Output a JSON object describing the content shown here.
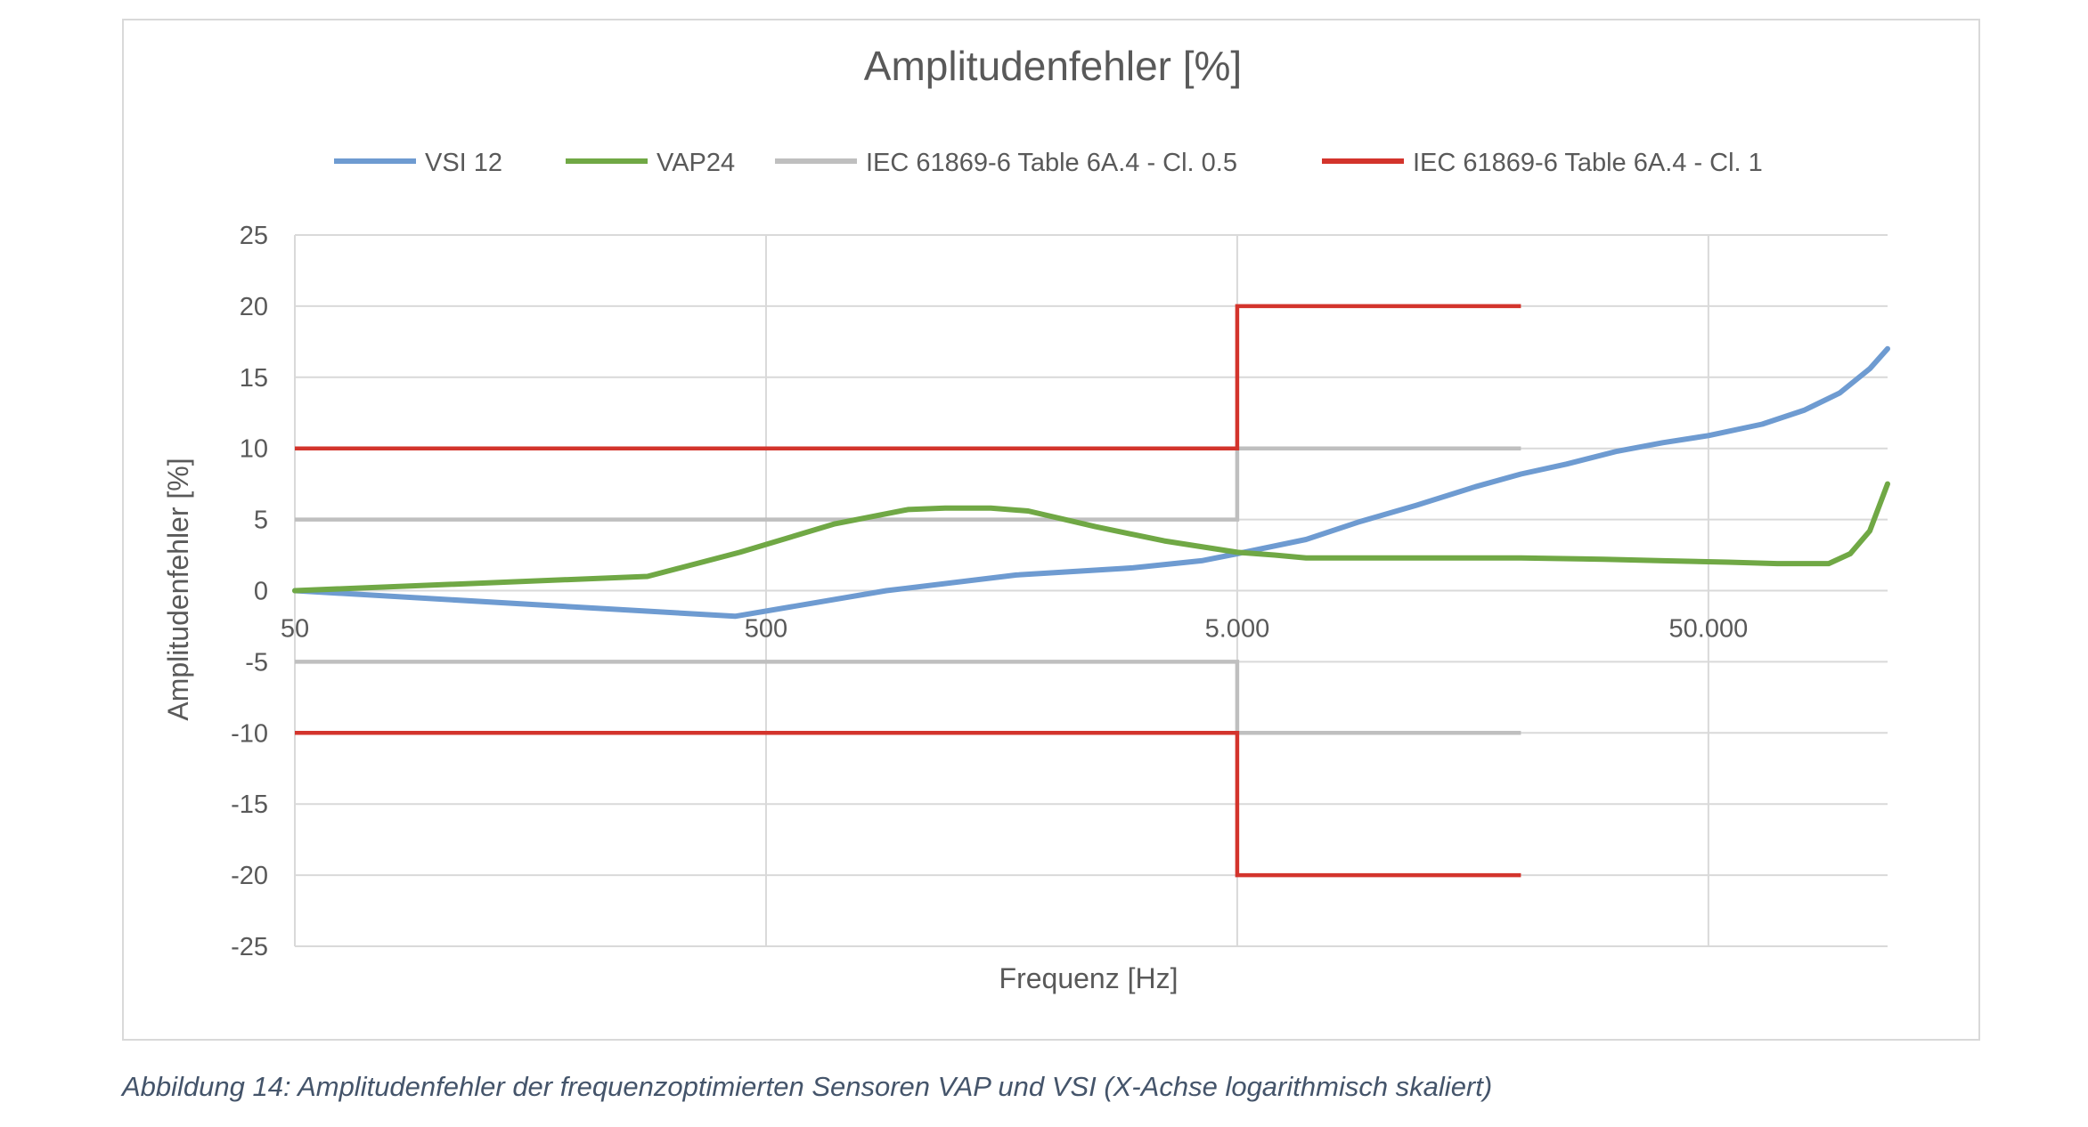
{
  "chart_data": {
    "type": "line",
    "title": "Amplitudenfehler [%]",
    "xlabel": "Frequenz [Hz]",
    "ylabel": "Amplitudenfehler [%]",
    "x_scale": "log",
    "xlim": [
      50,
      120000
    ],
    "ylim": [
      -25,
      25
    ],
    "x_ticks": [
      50,
      500,
      5000,
      50000
    ],
    "x_tick_labels": [
      "50",
      "500",
      "5.000",
      "50.000"
    ],
    "y_ticks": [
      25,
      20,
      15,
      10,
      5,
      0,
      -5,
      -10,
      -15,
      -20,
      -25
    ],
    "y_tick_labels": [
      "25",
      "20",
      "15",
      "10",
      "5",
      "0",
      "-5",
      "-10",
      "-15",
      "-20",
      "-25"
    ],
    "grid": true,
    "legend_position": "top",
    "series": [
      {
        "name": "VSI 12",
        "color": "#6e9bd1",
        "x": [
          50,
          430,
          900,
          1700,
          3000,
          4200,
          5000,
          7000,
          9000,
          12000,
          16000,
          20000,
          25000,
          32000,
          40000,
          50000,
          65000,
          80000,
          95000,
          110000,
          120000
        ],
        "y": [
          0,
          -1.8,
          0,
          1.1,
          1.6,
          2.1,
          2.6,
          3.6,
          4.8,
          6.0,
          7.3,
          8.2,
          8.9,
          9.8,
          10.4,
          10.9,
          11.7,
          12.7,
          13.9,
          15.6,
          17.0
        ]
      },
      {
        "name": "VAP24",
        "color": "#70a845",
        "x": [
          50,
          280,
          440,
          700,
          1000,
          1200,
          1500,
          1800,
          2500,
          3500,
          5000,
          6000,
          7000,
          10000,
          20000,
          30000,
          40000,
          55000,
          70000,
          90000,
          100000,
          110000,
          120000
        ],
        "y": [
          0,
          1.0,
          2.7,
          4.7,
          5.7,
          5.8,
          5.8,
          5.6,
          4.5,
          3.5,
          2.7,
          2.5,
          2.3,
          2.3,
          2.3,
          2.2,
          2.1,
          2.0,
          1.9,
          1.9,
          2.6,
          4.2,
          7.5
        ]
      },
      {
        "name": "IEC 61869-6 Table 6A.4 - Cl. 0.5",
        "color": "#bfbfbf",
        "segments": [
          {
            "x": [
              50,
              5000,
              5000,
              20000
            ],
            "y": [
              5,
              5,
              10,
              10
            ]
          },
          {
            "x": [
              50,
              5000,
              5000,
              20000
            ],
            "y": [
              -5,
              -5,
              -10,
              -10
            ]
          }
        ]
      },
      {
        "name": "IEC 61869-6 Table 6A.4 - Cl. 1",
        "color": "#d3342c",
        "segments": [
          {
            "x": [
              50,
              5000,
              5000,
              20000
            ],
            "y": [
              10,
              10,
              20,
              20
            ]
          },
          {
            "x": [
              50,
              5000,
              5000,
              20000
            ],
            "y": [
              -10,
              -10,
              -20,
              -20
            ]
          }
        ]
      }
    ]
  },
  "caption": "Abbildung 14: Amplitudenfehler der frequenzoptimierten Sensoren VAP und VSI (X-Achse logarithmisch skaliert)"
}
